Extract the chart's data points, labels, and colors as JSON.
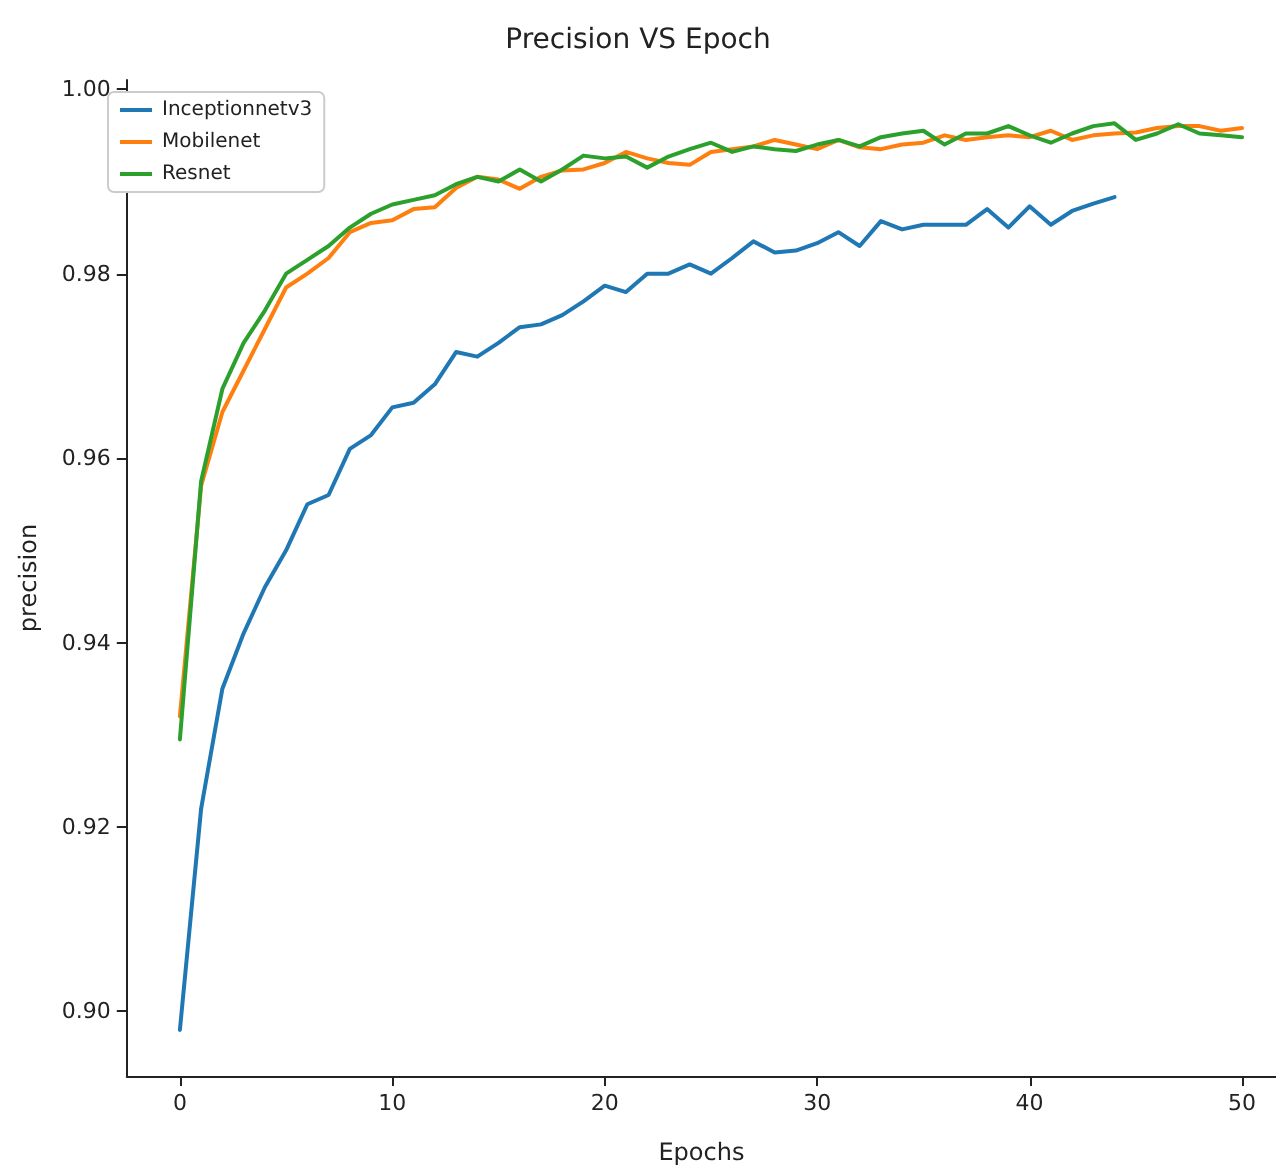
{
  "chart_data": {
    "type": "line",
    "title": "Precision VS Epoch",
    "xlabel": "Epochs",
    "ylabel": "precision",
    "x": [
      0,
      1,
      2,
      3,
      4,
      5,
      6,
      7,
      8,
      9,
      10,
      11,
      12,
      13,
      14,
      15,
      16,
      17,
      18,
      19,
      20,
      21,
      22,
      23,
      24,
      25,
      26,
      27,
      28,
      29,
      30,
      31,
      32,
      33,
      34,
      35,
      36,
      37,
      38,
      39,
      40,
      41,
      42,
      43,
      44,
      45,
      46,
      47,
      48,
      49,
      50
    ],
    "series": [
      {
        "name": "Inceptionnetv3",
        "color": "#1f77b4",
        "values": [
          0.898,
          0.922,
          0.935,
          0.941,
          0.946,
          0.95,
          0.955,
          0.956,
          0.961,
          0.9625,
          0.9655,
          0.966,
          0.968,
          0.9715,
          0.971,
          0.9725,
          0.9742,
          0.9745,
          0.9755,
          0.977,
          0.9787,
          0.978,
          0.98,
          0.98,
          0.981,
          0.98,
          0.9817,
          0.9835,
          0.9823,
          0.9825,
          0.9833,
          0.9845,
          0.983,
          0.9857,
          0.9848,
          0.9853,
          0.9853,
          0.9853,
          0.987,
          0.985,
          0.9873,
          0.9853,
          0.9868,
          0.9876,
          0.9883,
          null,
          null,
          null,
          null,
          null,
          null
        ]
      },
      {
        "name": "Mobilenet",
        "color": "#ff7f0e",
        "values": [
          0.932,
          0.957,
          0.965,
          0.9695,
          0.974,
          0.9785,
          0.98,
          0.9817,
          0.9845,
          0.9855,
          0.9858,
          0.987,
          0.9872,
          0.9893,
          0.9905,
          0.9902,
          0.9892,
          0.9905,
          0.9912,
          0.9913,
          0.992,
          0.9932,
          0.9925,
          0.992,
          0.9918,
          0.9932,
          0.9935,
          0.9938,
          0.9945,
          0.994,
          0.9935,
          0.9945,
          0.9937,
          0.9935,
          0.994,
          0.9942,
          0.995,
          0.9945,
          0.9948,
          0.995,
          0.9948,
          0.9955,
          0.9945,
          0.995,
          0.9952,
          0.9953,
          0.9958,
          0.996,
          0.996,
          0.9955,
          0.9958
        ]
      },
      {
        "name": "Resnet",
        "color": "#2ca02c",
        "values": [
          0.9295,
          0.9575,
          0.9675,
          0.9725,
          0.976,
          0.98,
          0.9815,
          0.983,
          0.985,
          0.9865,
          0.9875,
          0.988,
          0.9885,
          0.9897,
          0.9905,
          0.99,
          0.9913,
          0.99,
          0.9913,
          0.9928,
          0.9925,
          0.9927,
          0.9915,
          0.9927,
          0.9935,
          0.9942,
          0.9932,
          0.9938,
          0.9935,
          0.9933,
          0.994,
          0.9945,
          0.9938,
          0.9948,
          0.9952,
          0.9955,
          0.994,
          0.9952,
          0.9952,
          0.996,
          0.995,
          0.9942,
          0.9952,
          0.996,
          0.9963,
          0.9945,
          0.9952,
          0.9962,
          0.9952,
          0.995,
          0.9948
        ]
      }
    ],
    "xlim": [
      -2.5,
      51.6
    ],
    "ylim": [
      0.893,
      1.001
    ],
    "xticks": [
      0,
      10,
      20,
      30,
      40,
      50
    ],
    "yticks": [
      {
        "value": 0.9,
        "label": "0.90"
      },
      {
        "value": 0.92,
        "label": "0.92"
      },
      {
        "value": 0.94,
        "label": "0.94"
      },
      {
        "value": 0.96,
        "label": "0.96"
      },
      {
        "value": 0.98,
        "label": "0.98"
      },
      {
        "value": 1.0,
        "label": "1.00"
      }
    ],
    "legend": "top left",
    "grid": false,
    "marker": "none",
    "line_style": "solid"
  }
}
